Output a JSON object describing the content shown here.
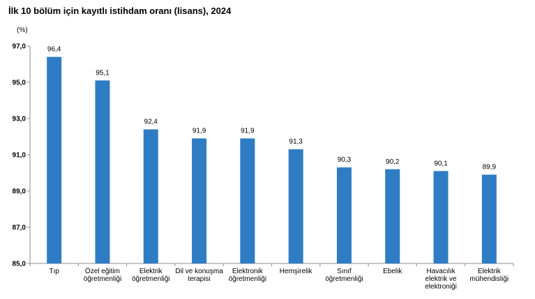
{
  "chart_data": {
    "type": "bar",
    "title": "İlk 10 bölüm için kayıtlı istihdam oranı (lisans), 2024",
    "unit_label": "(%)",
    "ylim": [
      85.0,
      97.0
    ],
    "yticks": [
      "85,0",
      "87,0",
      "89,0",
      "91,0",
      "93,0",
      "95,0",
      "97,0"
    ],
    "categories": [
      "Tıp",
      "Özel eğitim\nöğretmenliği",
      "Elektrik\nöğretmenliği",
      "Dil ve konuşma\nterapisi",
      "Elektronik\nöğretmenliği",
      "Hemşirelik",
      "Sınıf\nöğretmenliği",
      "Ebelik",
      "Havacılık\nelektrik ve\nelektroniği",
      "Elektrik\nmühendisliği"
    ],
    "values": [
      96.4,
      95.1,
      92.4,
      91.9,
      91.9,
      91.3,
      90.3,
      90.2,
      90.1,
      89.9
    ],
    "value_labels": [
      "96,4",
      "95,1",
      "92,4",
      "91,9",
      "91,9",
      "91,3",
      "90,3",
      "90,2",
      "90,1",
      "89,9"
    ],
    "bar_color": "#2e7dc4",
    "grid": false
  }
}
